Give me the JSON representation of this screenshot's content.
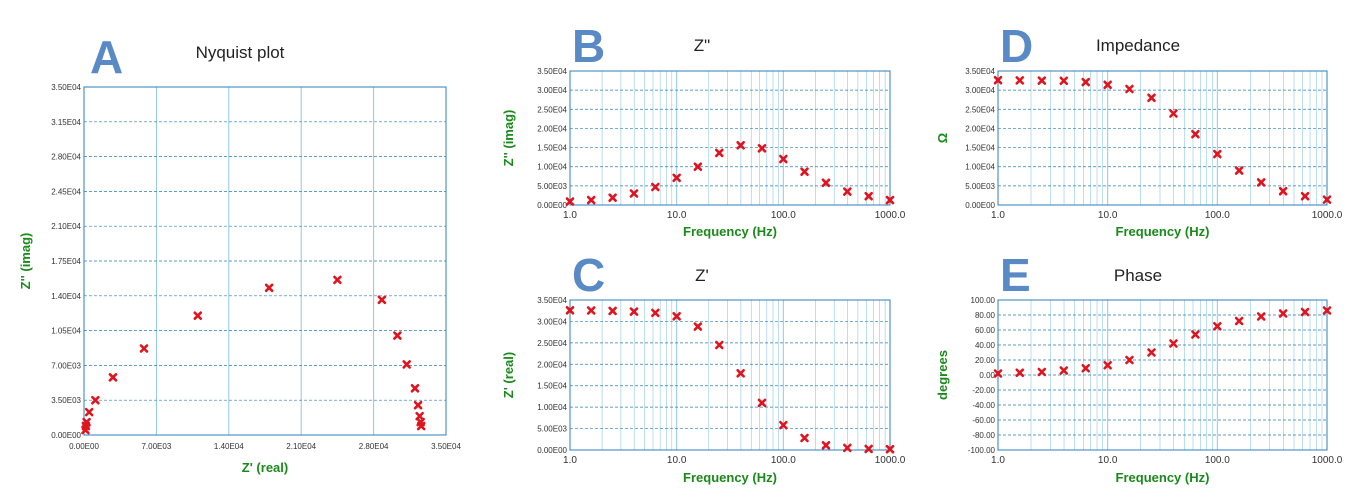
{
  "figure": {
    "colors": {
      "accent": "#5a8ac6",
      "axis_label": "#1a8a1a",
      "marker": "#e0141e",
      "grid": "#8fc8e6",
      "axis": "#2b7fb8"
    }
  },
  "chart_data": [
    {
      "id": "A",
      "panel_letter": "A",
      "type": "scatter",
      "title": "Nyquist plot",
      "xlabel": "Z' (real)",
      "ylabel": "Z'' (imag)",
      "xlim": [
        0,
        35000
      ],
      "ylim": [
        0,
        35000
      ],
      "xscale": "linear",
      "xticks": [
        0,
        7000,
        14000,
        21000,
        28000,
        35000
      ],
      "xtick_labels": [
        "0.00E00",
        "7.00E03",
        "1.40E04",
        "2.10E04",
        "2.80E04",
        "3.50E04"
      ],
      "yticks": [
        0,
        3500,
        7000,
        10500,
        14000,
        17500,
        21000,
        24500,
        28000,
        31500,
        35000
      ],
      "ytick_labels": [
        "0.00E00",
        "3.50E03",
        "7.00E03",
        "1.05E04",
        "1.40E04",
        "1.75E04",
        "2.10E04",
        "2.45E04",
        "2.80E04",
        "3.15E04",
        "3.50E04"
      ],
      "grid": true,
      "series": [
        {
          "x": [
            32600,
            32550,
            32450,
            32300,
            32000,
            31200,
            30300,
            28800,
            24500,
            17900,
            11000,
            5800,
            2800,
            1100,
            500,
            250,
            180,
            140
          ],
          "y": [
            900,
            1300,
            1900,
            3000,
            4700,
            7100,
            10000,
            13600,
            15600,
            14800,
            12000,
            8700,
            5800,
            3500,
            2300,
            1300,
            900,
            500
          ]
        }
      ]
    },
    {
      "id": "B",
      "panel_letter": "B",
      "type": "scatter",
      "title": "Z\"",
      "xlabel": "Frequency (Hz)",
      "ylabel": "Z'' (imag)",
      "xscale": "log",
      "xlim": [
        1,
        1000
      ],
      "ylim": [
        0,
        35000
      ],
      "xtick_labels": [
        "1.0",
        "10.0",
        "100.0",
        "1000.0"
      ],
      "yticks": [
        0,
        5000,
        10000,
        15000,
        20000,
        25000,
        30000,
        35000
      ],
      "ytick_labels": [
        "0.00E00",
        "5.00E03",
        "1.00E04",
        "1.50E04",
        "2.00E04",
        "2.50E04",
        "3.00E04",
        "3.50E04"
      ],
      "grid": true,
      "series": [
        {
          "x": [
            1,
            1.58,
            2.51,
            3.98,
            6.31,
            10,
            15.8,
            25.1,
            39.8,
            63.1,
            100,
            158,
            251,
            398,
            631,
            1000
          ],
          "y": [
            900,
            1300,
            1900,
            3000,
            4700,
            7100,
            10000,
            13600,
            15600,
            14800,
            12000,
            8700,
            5800,
            3500,
            2300,
            1300
          ]
        }
      ]
    },
    {
      "id": "C",
      "panel_letter": "C",
      "type": "scatter",
      "title": "Z'",
      "xlabel": "Frequency (Hz)",
      "ylabel": "Z' (real)",
      "xscale": "log",
      "xlim": [
        1,
        1000
      ],
      "ylim": [
        0,
        35000
      ],
      "xtick_labels": [
        "1.0",
        "10.0",
        "100.0",
        "1000.0"
      ],
      "yticks": [
        0,
        5000,
        10000,
        15000,
        20000,
        25000,
        30000,
        35000
      ],
      "ytick_labels": [
        "0.00E00",
        "5.00E03",
        "1.00E04",
        "1.50E04",
        "2.00E04",
        "2.50E04",
        "3.00E04",
        "3.50E04"
      ],
      "grid": true,
      "series": [
        {
          "x": [
            1,
            1.58,
            2.51,
            3.98,
            6.31,
            10,
            15.8,
            25.1,
            39.8,
            63.1,
            100,
            158,
            251,
            398,
            631,
            1000
          ],
          "y": [
            32600,
            32550,
            32450,
            32300,
            32000,
            31200,
            28800,
            24500,
            17900,
            11000,
            5800,
            2800,
            1100,
            500,
            250,
            180
          ]
        }
      ]
    },
    {
      "id": "D",
      "panel_letter": "D",
      "type": "scatter",
      "title": "Impedance",
      "xlabel": "Frequency (Hz)",
      "ylabel": "Ω",
      "xscale": "log",
      "xlim": [
        1,
        1000
      ],
      "ylim": [
        0,
        35000
      ],
      "xtick_labels": [
        "1.0",
        "10.0",
        "100.0",
        "1000.0"
      ],
      "yticks": [
        0,
        5000,
        10000,
        15000,
        20000,
        25000,
        30000,
        35000
      ],
      "ytick_labels": [
        "0.00E00",
        "5.00E03",
        "1.00E04",
        "1.50E04",
        "2.00E04",
        "2.50E04",
        "3.00E04",
        "3.50E04"
      ],
      "grid": true,
      "series": [
        {
          "x": [
            1,
            1.58,
            2.51,
            3.98,
            6.31,
            10,
            15.8,
            25.1,
            39.8,
            63.1,
            100,
            158,
            251,
            398,
            631,
            1000
          ],
          "y": [
            32600,
            32550,
            32500,
            32450,
            32100,
            31400,
            30300,
            28000,
            23900,
            18500,
            13300,
            9000,
            5900,
            3600,
            2300,
            1400
          ]
        }
      ]
    },
    {
      "id": "E",
      "panel_letter": "E",
      "type": "scatter",
      "title": "Phase",
      "xlabel": "Frequency (Hz)",
      "ylabel": "degrees",
      "xscale": "log",
      "xlim": [
        1,
        1000
      ],
      "ylim": [
        -100,
        100
      ],
      "xtick_labels": [
        "1.0",
        "10.0",
        "100.0",
        "1000.0"
      ],
      "yticks": [
        -100,
        -80,
        -60,
        -40,
        -20,
        0,
        20,
        40,
        60,
        80,
        100
      ],
      "ytick_labels": [
        "-100.00",
        "-80.00",
        "-60.00",
        "-40.00",
        "-20.00",
        "0.00",
        "20.00",
        "40.00",
        "60.00",
        "80.00",
        "100.00"
      ],
      "grid": true,
      "series": [
        {
          "x": [
            1,
            1.58,
            2.51,
            3.98,
            6.31,
            10,
            15.8,
            25.1,
            39.8,
            63.1,
            100,
            158,
            251,
            398,
            631,
            1000
          ],
          "y": [
            2,
            3,
            4,
            6,
            9,
            13,
            20,
            30,
            42,
            54,
            65,
            72,
            78,
            82,
            84,
            86
          ]
        }
      ]
    }
  ]
}
